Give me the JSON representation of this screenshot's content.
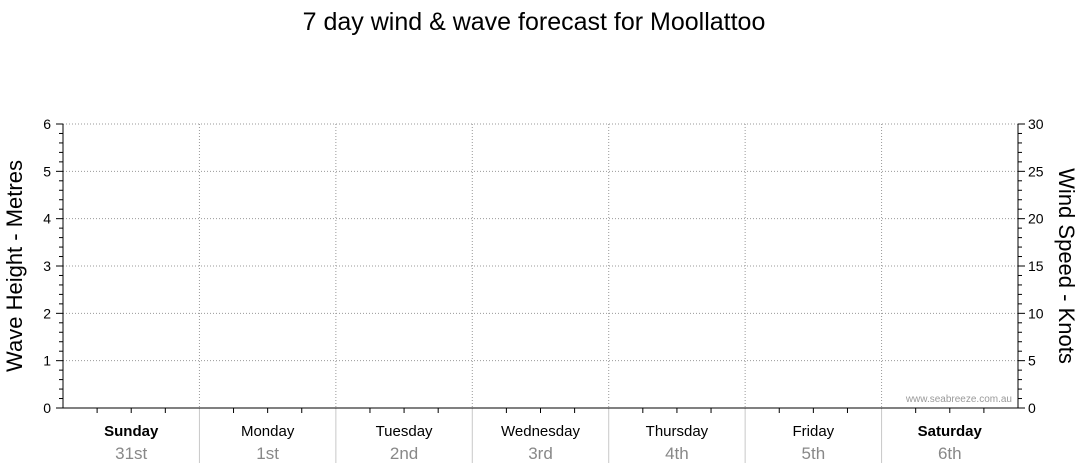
{
  "chart_data": {
    "type": "line",
    "title": "7 day wind & wave forecast for Moollattoo",
    "ylabel_left": "Wave Height - Metres",
    "ylabel_right": "Wind Speed - Knots",
    "ylim_left": [
      0,
      6
    ],
    "ylim_right": [
      0,
      30
    ],
    "yticks_left": [
      "0",
      "1",
      "2",
      "3",
      "4",
      "5",
      "6"
    ],
    "yticks_right": [
      "0",
      "5",
      "10",
      "15",
      "20",
      "25",
      "30"
    ],
    "days": [
      {
        "name": "Sunday",
        "date": "31st",
        "bold": true
      },
      {
        "name": "Monday",
        "date": "1st",
        "bold": false
      },
      {
        "name": "Tuesday",
        "date": "2nd",
        "bold": false
      },
      {
        "name": "Wednesday",
        "date": "3rd",
        "bold": false
      },
      {
        "name": "Thursday",
        "date": "4th",
        "bold": false
      },
      {
        "name": "Friday",
        "date": "5th",
        "bold": false
      },
      {
        "name": "Saturday",
        "date": "6th",
        "bold": true
      }
    ],
    "series": [],
    "grid": true,
    "watermark": "www.seabreeze.com.au"
  }
}
